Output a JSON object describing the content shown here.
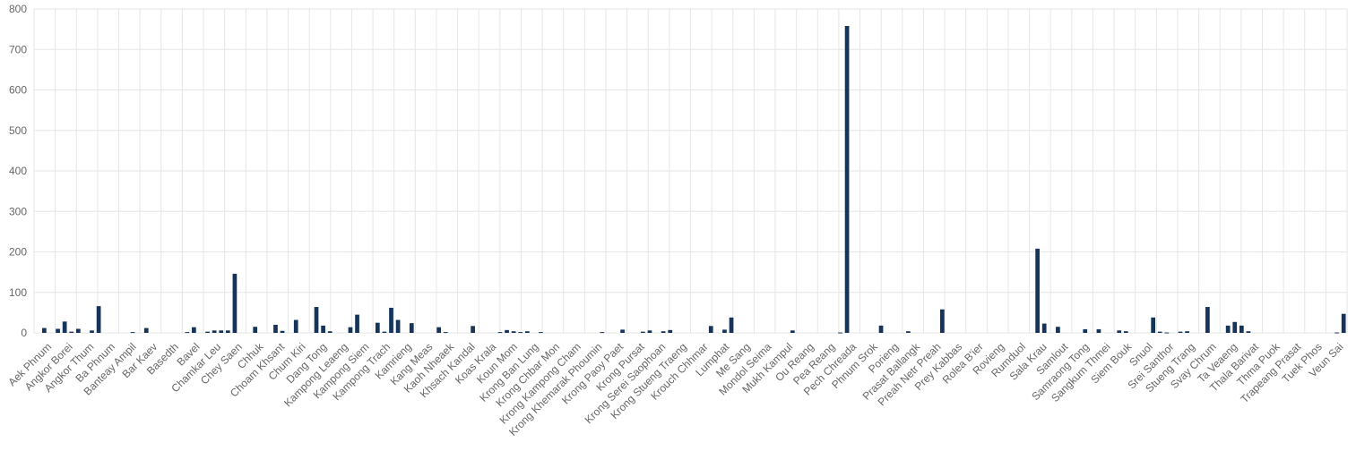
{
  "chart_data": {
    "type": "bar",
    "title": "",
    "xlabel": "",
    "ylabel": "",
    "ylim": [
      0,
      800
    ],
    "yticks": [
      0,
      100,
      200,
      300,
      400,
      500,
      600,
      700,
      800
    ],
    "grid": true,
    "legend": "none",
    "bar_color": "#163459",
    "x_tick_labels": [
      "Aek Phnum",
      "Angkor Borei",
      "Angkor Thum",
      "Ba Phnum",
      "Banteay Ampil",
      "Bar Kaev",
      "Basedth",
      "Bavel",
      "Chamkar Leu",
      "Chey Saen",
      "Chhuk",
      "Choam Khsant",
      "Chum Kiri",
      "Dang Tong",
      "Kampong Leaeng",
      "Kampong Siem",
      "Kampong Trach",
      "Kamrieng",
      "Kang Meas",
      "Kaoh Nheaek",
      "Khsach Kandal",
      "Koas Krala",
      "Koun Mom",
      "Krong Ban Lung",
      "Krong Chbar Mon",
      "Krong Kampong Cham",
      "Krong Khemarak Phoumin",
      "Krong Paoy Paet",
      "Krong Pursat",
      "Krong Serei Saophoan",
      "Krong Stueng Traeng",
      "Krouch Chhmar",
      "Lumphat",
      "Me Sang",
      "Mondol Seima",
      "Mukh Kampul",
      "Ou Reang",
      "Pea Reang",
      "Pech Chreada",
      "Phnum Srok",
      "Porieng",
      "Prasat Ballangk",
      "Preah Netr Preah",
      "Prey Kabbas",
      "Rolea B'ier",
      "Rovieng",
      "Rumduol",
      "Sala Krau",
      "Samlout",
      "Samraong Tong",
      "Sangkum Thmei",
      "Siem Bouk",
      "Snuol",
      "Srei Santhor",
      "Stueng Trang",
      "Svay Chrum",
      "Ta Veaeng",
      "Thala Barivat",
      "Thma Puok",
      "Trapeang Prasat",
      "Tuek Phos",
      "Veun Sai"
    ],
    "values": [
      0,
      12,
      0,
      10,
      28,
      3,
      10,
      0,
      6,
      66,
      0,
      0,
      0,
      0,
      2,
      0,
      12,
      0,
      0,
      0,
      0,
      0,
      2,
      14,
      0,
      3,
      6,
      6,
      6,
      146,
      0,
      0,
      15,
      0,
      0,
      20,
      5,
      0,
      32,
      0,
      0,
      64,
      18,
      4,
      0,
      0,
      14,
      45,
      0,
      0,
      25,
      3,
      62,
      32,
      0,
      24,
      0,
      0,
      0,
      14,
      2,
      0,
      0,
      0,
      17,
      0,
      0,
      0,
      2,
      7,
      4,
      2,
      4,
      0,
      2,
      0,
      0,
      0,
      0,
      0,
      0,
      0,
      0,
      2,
      0,
      0,
      8,
      0,
      0,
      3,
      6,
      0,
      4,
      7,
      0,
      0,
      0,
      0,
      0,
      17,
      0,
      8,
      38,
      0,
      0,
      0,
      0,
      0,
      0,
      0,
      0,
      6,
      0,
      0,
      0,
      0,
      0,
      0,
      1,
      758,
      0,
      0,
      0,
      0,
      18,
      0,
      0,
      0,
      4,
      0,
      0,
      0,
      0,
      58,
      0,
      0,
      0,
      0,
      0,
      0,
      0,
      0,
      0,
      0,
      0,
      0,
      0,
      208,
      23,
      0,
      15,
      0,
      0,
      0,
      9,
      0,
      9,
      0,
      0,
      6,
      4,
      0,
      0,
      0,
      38,
      3,
      1,
      0,
      3,
      4,
      0,
      0,
      64,
      0,
      0,
      18,
      27,
      18,
      4,
      0,
      0,
      0,
      0,
      0,
      0,
      0,
      0,
      0,
      0,
      0,
      0,
      1,
      47
    ]
  }
}
